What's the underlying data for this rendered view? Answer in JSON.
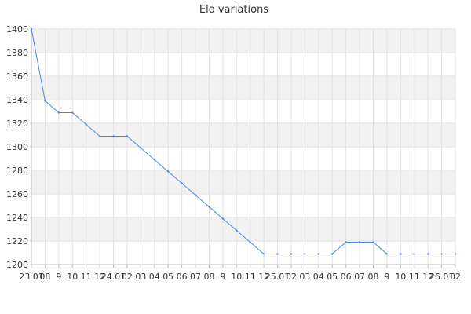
{
  "chart_data": {
    "type": "line",
    "title": "Elo variations",
    "xlabel": "",
    "ylabel": "",
    "ylim": [
      1200,
      1400
    ],
    "y_ticks": [
      1200,
      1220,
      1240,
      1260,
      1280,
      1300,
      1320,
      1340,
      1360,
      1380,
      1400
    ],
    "x_tick_labels": [
      "23.01",
      "08",
      "9",
      "10",
      "11",
      "12",
      "24.01",
      "02",
      "03",
      "04",
      "05",
      "06",
      "07",
      "08",
      "9",
      "10",
      "11",
      "12",
      "25.01",
      "02",
      "03",
      "04",
      "05",
      "06",
      "07",
      "08",
      "9",
      "10",
      "11",
      "12",
      "26.01",
      "02"
    ],
    "grid": true,
    "legend": "none",
    "colors": {
      "line": "#4a86e8",
      "band": "#f2f2f2",
      "grid": "#e2e2e2",
      "axis": "#bbbbbb"
    },
    "series": [
      {
        "values": [
          1400,
          1339,
          1329,
          1329,
          1319,
          1309,
          1309,
          1309,
          1299,
          1289,
          1279,
          1269,
          1259,
          1249,
          1239,
          1229,
          1219,
          1209,
          1209,
          1209,
          1209,
          1209,
          1209,
          1219,
          1219,
          1219,
          1209,
          1209,
          1209,
          1209,
          1209,
          1209
        ]
      }
    ]
  }
}
